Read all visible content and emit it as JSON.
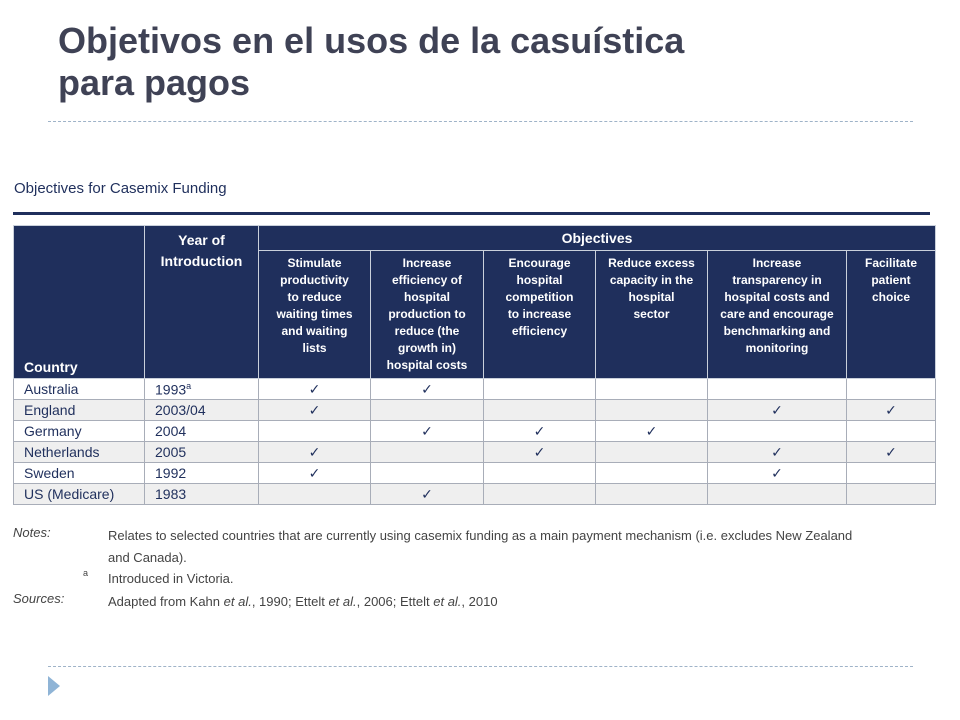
{
  "slide": {
    "title_line1": "Objetivos en el usos de la casuística",
    "title_line2": "para pagos"
  },
  "table": {
    "title": "Objectives for Casemix Funding",
    "headers": {
      "country": "Country",
      "year_line1": "Year of",
      "year_line2": "Introduction",
      "objectives": "Objectives"
    },
    "objectives": [
      [
        "Stimulate",
        "productivity",
        "to reduce",
        "waiting times",
        "and waiting",
        "lists"
      ],
      [
        "Increase",
        "efficiency of",
        "hospital",
        "production to",
        "reduce (the",
        "growth in)",
        "hospital costs"
      ],
      [
        "Encourage",
        "hospital",
        "competition",
        "to increase",
        "efficiency"
      ],
      [
        "Reduce excess",
        "capacity in the",
        "hospital",
        "sector"
      ],
      [
        "Increase",
        "transparency in",
        "hospital costs and",
        "care and encourage",
        "benchmarking and",
        "monitoring"
      ],
      [
        "Facilitate",
        "patient",
        "choice"
      ]
    ],
    "check_symbol": "✓",
    "rows": [
      {
        "country": "Australia",
        "year": "1993",
        "year_sup": "a",
        "checks": [
          true,
          true,
          false,
          false,
          false,
          false
        ]
      },
      {
        "country": "England",
        "year": "2003/04",
        "year_sup": "",
        "checks": [
          true,
          false,
          false,
          false,
          true,
          true
        ]
      },
      {
        "country": "Germany",
        "year": "2004",
        "year_sup": "",
        "checks": [
          false,
          true,
          true,
          true,
          false,
          false
        ]
      },
      {
        "country": "Netherlands",
        "year": "2005",
        "year_sup": "",
        "checks": [
          true,
          false,
          true,
          false,
          true,
          true
        ]
      },
      {
        "country": "Sweden",
        "year": "1992",
        "year_sup": "",
        "checks": [
          true,
          false,
          false,
          false,
          true,
          false
        ]
      },
      {
        "country": "US (Medicare)",
        "year": "1983",
        "year_sup": "",
        "checks": [
          false,
          true,
          false,
          false,
          false,
          false
        ]
      }
    ]
  },
  "notes": {
    "notes_key": "Notes:",
    "notes_line1": "Relates to selected countries that are currently using casemix funding as a main payment mechanism (i.e. excludes New Zealand",
    "notes_line2": "and Canada).",
    "footnote_mark": "a",
    "footnote_text": "Introduced in Victoria.",
    "sources_key": "Sources:",
    "sources_parts": [
      "Adapted from Kahn ",
      "et al.",
      ", 1990; Ettelt ",
      "et al.",
      ", 2006; Ettelt ",
      "et al.",
      ", 2010"
    ]
  }
}
